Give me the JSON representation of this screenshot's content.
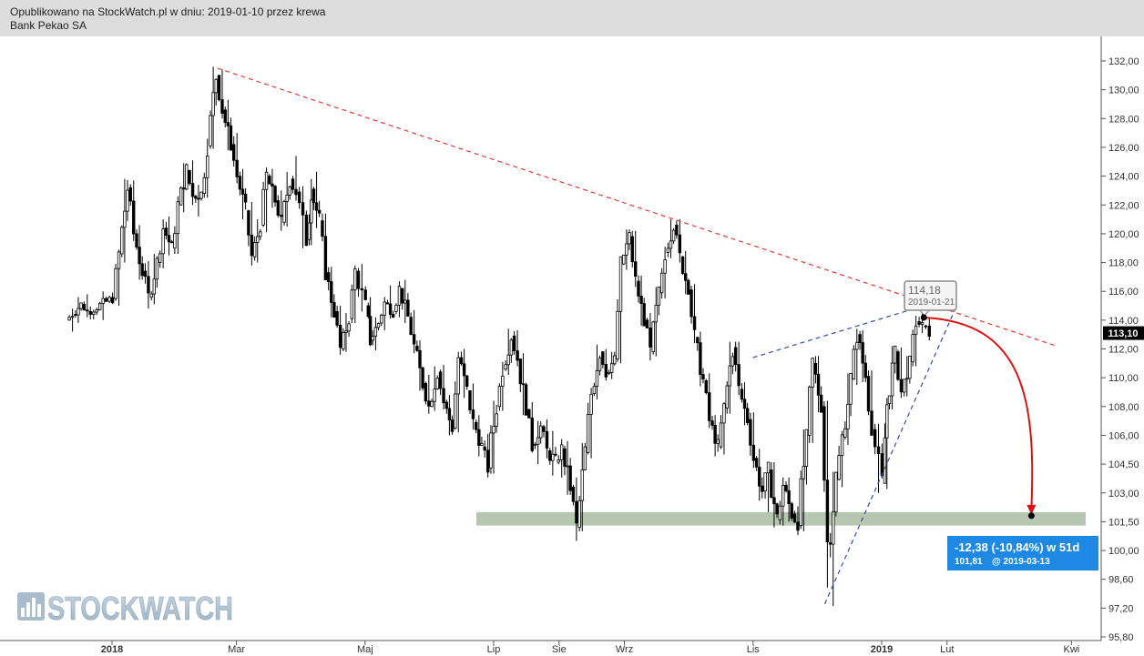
{
  "header": {
    "published_line": "Opublikowano na StockWatch.pl w dniu: 2019-01-10 przez krewa",
    "instrument": "Bank Pekao SA"
  },
  "watermark": {
    "text": "STOCKWATCH",
    "icon": "bar-chart-logo-icon"
  },
  "price_tag": {
    "value": "113,10",
    "color": "#000000"
  },
  "peak_tooltip": {
    "price": "114,18",
    "date": "2019-01-21"
  },
  "projection_box": {
    "change": "-12,38 (-10,84%) w 51d",
    "target_price": "101,81",
    "target_date": "@ 2019-03-13",
    "color": "#1e88e5"
  },
  "colors": {
    "resistance_line": "#e53935",
    "channel_lines": "#3949ab",
    "support_zone": "#b5c7b0",
    "projection_arrow": "#dd1111"
  },
  "chart_data": {
    "type": "candlestick",
    "x_tick_labels": [
      "2018",
      "Mar",
      "Maj",
      "Lip",
      "Sie",
      "Wrz",
      "Lis",
      "2019",
      "Lut",
      "Kwi"
    ],
    "y_tick_labels": [
      "132,00",
      "130,00",
      "128,00",
      "126,00",
      "124,00",
      "122,00",
      "120,00",
      "118,00",
      "116,00",
      "114,00",
      "112,00",
      "110,00",
      "108,00",
      "106,00",
      "104,50",
      "103,00",
      "101,50",
      "100,00",
      "98,60",
      "97,20",
      "95,80"
    ],
    "y_tick_values": [
      132,
      130,
      128,
      126,
      124,
      122,
      120,
      118,
      116,
      114,
      112,
      110,
      108,
      106,
      104.5,
      103,
      101.5,
      100,
      98.6,
      97.2,
      95.8
    ],
    "y_range": [
      95.8,
      132
    ],
    "last_price": 113.1,
    "support_zone": [
      101.3,
      102.0
    ],
    "candle_series": [
      [
        "2017-12-11",
        114.0,
        114.8,
        113.2,
        114.4
      ],
      [
        "2017-12-14",
        114.4,
        115.6,
        113.8,
        115.1
      ],
      [
        "2017-12-18",
        115.1,
        115.8,
        114.2,
        114.6
      ],
      [
        "2017-12-21",
        114.6,
        116.0,
        114.0,
        115.5
      ],
      [
        "2018-01-02",
        115.5,
        118.9,
        115.0,
        118.6
      ],
      [
        "2018-01-05",
        118.6,
        123.8,
        118.0,
        123.2
      ],
      [
        "2018-01-09",
        123.2,
        123.7,
        119.5,
        120.0
      ],
      [
        "2018-01-12",
        120.0,
        120.6,
        116.8,
        117.4
      ],
      [
        "2018-01-16",
        117.4,
        118.1,
        114.8,
        115.6
      ],
      [
        "2018-01-19",
        115.6,
        118.6,
        115.1,
        118.0
      ],
      [
        "2018-01-23",
        118.0,
        121.0,
        117.6,
        120.4
      ],
      [
        "2018-01-26",
        120.4,
        121.2,
        118.5,
        119.0
      ],
      [
        "2018-01-30",
        119.0,
        122.6,
        118.6,
        122.0
      ],
      [
        "2018-02-02",
        122.0,
        124.9,
        121.5,
        124.4
      ],
      [
        "2018-02-06",
        124.4,
        125.1,
        122.0,
        122.6
      ],
      [
        "2018-02-09",
        122.6,
        123.4,
        121.2,
        122.8
      ],
      [
        "2018-02-13",
        122.8,
        126.6,
        122.5,
        126.1
      ],
      [
        "2018-02-16",
        126.1,
        131.6,
        125.9,
        131.0
      ],
      [
        "2018-02-20",
        131.0,
        131.4,
        128.0,
        128.6
      ],
      [
        "2018-02-23",
        128.6,
        129.3,
        125.8,
        126.2
      ],
      [
        "2018-02-27",
        126.2,
        127.0,
        123.5,
        124.0
      ],
      [
        "2018-03-02",
        124.0,
        124.5,
        121.0,
        121.6
      ],
      [
        "2018-03-06",
        121.6,
        122.2,
        117.8,
        118.4
      ],
      [
        "2018-03-09",
        118.4,
        121.0,
        118.0,
        120.6
      ],
      [
        "2018-03-13",
        120.6,
        124.6,
        120.1,
        124.0
      ],
      [
        "2018-03-16",
        124.0,
        124.5,
        121.8,
        122.3
      ],
      [
        "2018-03-20",
        122.3,
        123.0,
        120.2,
        120.8
      ],
      [
        "2018-03-23",
        120.8,
        124.3,
        120.5,
        123.8
      ],
      [
        "2018-03-27",
        123.8,
        125.4,
        122.3,
        122.9
      ],
      [
        "2018-03-30",
        122.9,
        123.3,
        119.0,
        119.6
      ],
      [
        "2018-04-04",
        119.6,
        123.8,
        119.2,
        123.1
      ],
      [
        "2018-04-06",
        123.1,
        124.3,
        120.4,
        120.9
      ],
      [
        "2018-04-10",
        120.9,
        121.4,
        116.8,
        117.3
      ],
      [
        "2018-04-13",
        117.3,
        117.7,
        114.2,
        114.6
      ],
      [
        "2018-04-17",
        114.6,
        115.0,
        111.6,
        112.0
      ],
      [
        "2018-04-20",
        112.0,
        114.5,
        111.8,
        114.1
      ],
      [
        "2018-04-24",
        114.1,
        117.8,
        113.8,
        117.4
      ],
      [
        "2018-04-27",
        117.4,
        117.9,
        114.6,
        115.0
      ],
      [
        "2018-05-02",
        115.0,
        115.6,
        112.2,
        112.6
      ],
      [
        "2018-05-04",
        112.6,
        114.2,
        111.9,
        113.8
      ],
      [
        "2018-05-08",
        113.8,
        115.6,
        113.3,
        115.2
      ],
      [
        "2018-05-11",
        115.2,
        116.4,
        114.1,
        114.6
      ],
      [
        "2018-05-15",
        114.6,
        116.7,
        114.2,
        116.2
      ],
      [
        "2018-05-18",
        116.2,
        116.8,
        113.8,
        114.2
      ],
      [
        "2018-05-22",
        114.2,
        114.7,
        111.7,
        112.2
      ],
      [
        "2018-05-25",
        112.2,
        112.6,
        109.1,
        109.6
      ],
      [
        "2018-05-29",
        109.6,
        110.2,
        107.5,
        108.0
      ],
      [
        "2018-06-01",
        108.0,
        110.8,
        107.7,
        110.4
      ],
      [
        "2018-06-05",
        110.4,
        110.9,
        107.8,
        108.3
      ],
      [
        "2018-06-08",
        108.3,
        108.8,
        106.0,
        106.5
      ],
      [
        "2018-06-12",
        106.5,
        111.8,
        106.2,
        111.4
      ],
      [
        "2018-06-15",
        111.4,
        112.0,
        108.6,
        109.1
      ],
      [
        "2018-06-19",
        109.1,
        109.6,
        106.4,
        106.9
      ],
      [
        "2018-06-22",
        106.9,
        107.4,
        104.9,
        105.4
      ],
      [
        "2018-06-26",
        105.4,
        106.1,
        103.8,
        104.3
      ],
      [
        "2018-06-29",
        104.3,
        108.4,
        104.0,
        108.0
      ],
      [
        "2018-07-03",
        108.0,
        111.1,
        107.7,
        110.6
      ],
      [
        "2018-07-06",
        110.6,
        113.4,
        110.2,
        112.9
      ],
      [
        "2018-07-10",
        112.9,
        113.3,
        110.8,
        111.3
      ],
      [
        "2018-07-13",
        111.3,
        111.7,
        107.4,
        107.8
      ],
      [
        "2018-07-17",
        107.8,
        108.3,
        105.1,
        105.5
      ],
      [
        "2018-07-20",
        105.5,
        107.0,
        104.5,
        106.6
      ],
      [
        "2018-07-24",
        106.6,
        107.1,
        104.8,
        105.2
      ],
      [
        "2018-07-27",
        105.2,
        106.3,
        103.9,
        104.6
      ],
      [
        "2018-07-31",
        104.6,
        105.8,
        103.8,
        105.3
      ],
      [
        "2018-08-03",
        105.3,
        105.7,
        102.9,
        103.3
      ],
      [
        "2018-08-07",
        103.3,
        103.8,
        100.5,
        101.2
      ],
      [
        "2018-08-10",
        101.2,
        105.6,
        101.0,
        105.1
      ],
      [
        "2018-08-14",
        105.1,
        109.3,
        104.8,
        108.9
      ],
      [
        "2018-08-17",
        108.9,
        112.3,
        108.5,
        111.8
      ],
      [
        "2018-08-21",
        111.8,
        112.0,
        109.8,
        110.3
      ],
      [
        "2018-08-24",
        110.3,
        111.8,
        109.9,
        111.3
      ],
      [
        "2018-08-28",
        111.3,
        118.4,
        111.0,
        117.9
      ],
      [
        "2018-08-31",
        117.9,
        120.3,
        117.5,
        119.8
      ],
      [
        "2018-09-04",
        119.8,
        120.2,
        116.3,
        116.7
      ],
      [
        "2018-09-07",
        116.7,
        117.1,
        113.6,
        114.0
      ],
      [
        "2018-09-11",
        114.0,
        114.5,
        111.2,
        111.8
      ],
      [
        "2018-09-14",
        111.8,
        116.3,
        111.5,
        115.9
      ],
      [
        "2018-09-18",
        115.9,
        119.1,
        115.5,
        118.7
      ],
      [
        "2018-09-21",
        118.7,
        121.0,
        118.3,
        120.6
      ],
      [
        "2018-09-25",
        120.6,
        121.0,
        118.0,
        118.4
      ],
      [
        "2018-09-28",
        118.4,
        118.8,
        115.8,
        116.1
      ],
      [
        "2018-10-02",
        116.1,
        116.5,
        112.4,
        112.8
      ],
      [
        "2018-10-05",
        112.8,
        113.2,
        109.4,
        109.8
      ],
      [
        "2018-10-09",
        109.8,
        110.3,
        106.5,
        107.0
      ],
      [
        "2018-10-12",
        107.0,
        107.4,
        104.9,
        105.4
      ],
      [
        "2018-10-16",
        105.4,
        108.3,
        105.0,
        107.9
      ],
      [
        "2018-10-19",
        107.9,
        112.5,
        107.5,
        112.1
      ],
      [
        "2018-10-23",
        112.1,
        112.5,
        108.8,
        109.2
      ],
      [
        "2018-10-26",
        109.2,
        109.7,
        106.7,
        107.1
      ],
      [
        "2018-10-30",
        107.1,
        107.6,
        104.3,
        104.8
      ],
      [
        "2018-11-02",
        104.8,
        105.3,
        102.6,
        103.1
      ],
      [
        "2018-11-06",
        103.1,
        104.6,
        102.0,
        104.2
      ],
      [
        "2018-11-09",
        104.2,
        104.6,
        101.2,
        101.6
      ],
      [
        "2018-11-13",
        101.6,
        103.8,
        101.3,
        103.4
      ],
      [
        "2018-11-16",
        103.4,
        103.8,
        101.5,
        101.9
      ],
      [
        "2018-11-20",
        101.9,
        102.3,
        100.8,
        101.3
      ],
      [
        "2018-11-23",
        101.3,
        106.4,
        101.0,
        106.0
      ],
      [
        "2018-11-27",
        106.0,
        111.4,
        105.6,
        111.0
      ],
      [
        "2018-11-30",
        111.0,
        111.5,
        107.6,
        108.0
      ],
      [
        "2018-12-04",
        108.0,
        108.4,
        98.2,
        100.4
      ],
      [
        "2018-12-07",
        100.4,
        104.1,
        97.3,
        103.7
      ],
      [
        "2018-12-11",
        103.7,
        106.3,
        103.3,
        105.9
      ],
      [
        "2018-12-14",
        105.9,
        110.3,
        105.5,
        109.9
      ],
      [
        "2018-12-18",
        109.9,
        113.4,
        109.5,
        113.0
      ],
      [
        "2018-12-21",
        113.0,
        113.3,
        109.7,
        110.1
      ],
      [
        "2018-12-25",
        110.1,
        110.5,
        106.0,
        106.4
      ],
      [
        "2018-12-28",
        106.4,
        106.8,
        103.0,
        103.5
      ],
      [
        "2019-01-02",
        103.5,
        108.6,
        103.2,
        108.2
      ],
      [
        "2019-01-04",
        108.2,
        112.2,
        107.8,
        111.8
      ],
      [
        "2019-01-08",
        111.8,
        112.1,
        108.6,
        109.0
      ],
      [
        "2019-01-11",
        109.0,
        111.5,
        108.7,
        111.1
      ],
      [
        "2019-01-15",
        111.1,
        114.3,
        110.8,
        113.9
      ],
      [
        "2019-01-18",
        113.9,
        115.0,
        113.1,
        113.6
      ],
      [
        "2019-01-21",
        113.6,
        114.2,
        112.6,
        113.1
      ]
    ],
    "annotations": [
      {
        "type": "line",
        "name": "resistance",
        "from": [
          "2018-02-20",
          131.5
        ],
        "to": [
          "2019-03-25",
          112.2
        ]
      },
      {
        "type": "line",
        "name": "channel-upper",
        "from": [
          "2018-11-01",
          111.4
        ],
        "to": [
          "2019-01-21",
          115.0
        ]
      },
      {
        "type": "line",
        "name": "channel-lower",
        "from": [
          "2018-12-05",
          97.4
        ],
        "to": [
          "2019-02-05",
          114.8
        ]
      },
      {
        "type": "arrow",
        "name": "projection",
        "from": [
          "2019-01-21",
          114.18
        ],
        "to": [
          "2019-03-13",
          101.81
        ]
      }
    ]
  }
}
